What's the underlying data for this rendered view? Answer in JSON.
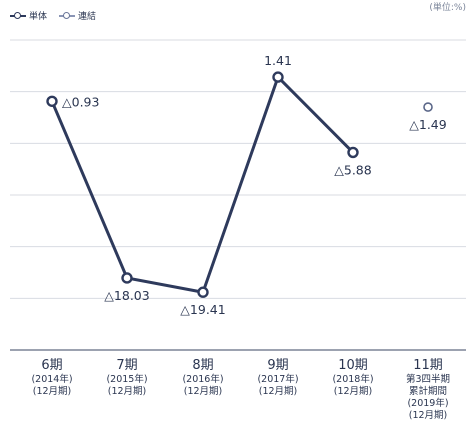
{
  "legend": {
    "tandoku": "単体",
    "renketsu": "連結"
  },
  "unit_label": "(単位:%)",
  "colors": {
    "line": "#2e3a5c",
    "text": "#2a3550",
    "grid": "#d8dbe2",
    "axis": "#7c8496"
  },
  "chart_data": {
    "type": "line",
    "title": "",
    "xlabel": "",
    "ylabel": "",
    "ylim": [
      -25,
      5
    ],
    "grid": true,
    "legend_position": "top-left",
    "categories": [
      [
        "6期",
        "(2014年)",
        "(12月期)"
      ],
      [
        "7期",
        "(2015年)",
        "(12月期)"
      ],
      [
        "8期",
        "(2016年)",
        "(12月期)"
      ],
      [
        "9期",
        "(2017年)",
        "(12月期)"
      ],
      [
        "10期",
        "(2018年)",
        "(12月期)"
      ],
      [
        "11期",
        "第3四半期",
        "累計期間",
        "(2019年)",
        "(12月期)"
      ]
    ],
    "series": [
      {
        "name": "単体",
        "values": [
          -0.93,
          -18.03,
          -19.41,
          1.41,
          -5.88,
          null
        ],
        "labels": [
          "△0.93",
          "△18.03",
          "△19.41",
          "1.41",
          "△5.88",
          null
        ]
      },
      {
        "name": "連結",
        "values": [
          null,
          null,
          null,
          null,
          null,
          -1.49
        ],
        "labels": [
          null,
          null,
          null,
          null,
          null,
          "△1.49"
        ]
      }
    ]
  }
}
